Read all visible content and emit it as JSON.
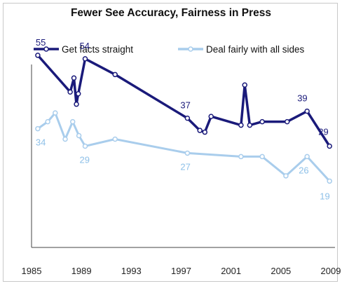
{
  "chart_data": {
    "type": "line",
    "title": "Fewer See Accuracy, Fairness in Press",
    "xlabel": "",
    "ylabel": "",
    "xlim": [
      1985,
      2009
    ],
    "ylim": [
      0,
      60
    ],
    "grid": false,
    "legend": "top",
    "x_ticks": [
      "1985",
      "1989",
      "1993",
      "1997",
      "2001",
      "2005",
      "2009"
    ],
    "series": [
      {
        "name": "Get facts straight",
        "color": "#1a1a7a",
        "marker_fill": "#ffffff",
        "x": [
          1985.5,
          1988.1,
          1988.4,
          1988.6,
          1988.75,
          1989.3,
          1991.7,
          1997.5,
          1998.5,
          1998.9,
          1999.4,
          2001.8,
          2002.1,
          2002.5,
          2003.5,
          2005.5,
          2007.1,
          2008.9
        ],
        "y": [
          55,
          44.5,
          48.5,
          41,
          44,
          54,
          49.5,
          37,
          33.5,
          33,
          37.5,
          35,
          46.5,
          35,
          36,
          36,
          39,
          29
        ],
        "labels": [
          {
            "index": 0,
            "text": "55"
          },
          {
            "index": 5,
            "text": "54"
          },
          {
            "index": 7,
            "text": "37"
          },
          {
            "index": 16,
            "text": "39"
          },
          {
            "index": 17,
            "text": "29"
          }
        ]
      },
      {
        "name": "Deal fairly with all sides",
        "color": "#a9cdec",
        "marker_fill": "#ffffff",
        "x": [
          1985.5,
          1986.3,
          1986.9,
          1987.7,
          1988.3,
          1988.8,
          1989.3,
          1991.7,
          1997.5,
          2001.8,
          2003.5,
          2005.4,
          2007.1,
          2008.9
        ],
        "y": [
          34,
          36,
          38.5,
          31,
          36,
          32,
          29,
          31,
          27,
          26,
          26,
          20.5,
          26,
          19
        ],
        "labels": [
          {
            "index": 0,
            "text": "34"
          },
          {
            "index": 6,
            "text": "29"
          },
          {
            "index": 8,
            "text": "27"
          },
          {
            "index": 12,
            "text": "26"
          },
          {
            "index": 13,
            "text": "19"
          }
        ]
      }
    ]
  }
}
